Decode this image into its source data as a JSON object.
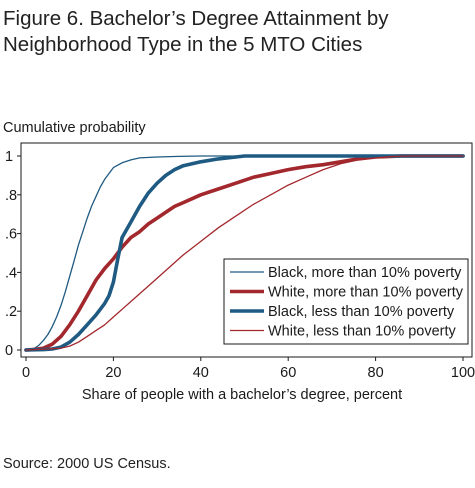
{
  "figure": {
    "title_line1": "Figure 6. Bachelor’s Degree Attainment by",
    "title_line2": "Neighborhood Type in the 5 MTO Cities",
    "source": "Source: 2000 US Census."
  },
  "chart_data": {
    "type": "line",
    "ylabel": "Cumulative probability",
    "xlabel": "Share of people with a bachelor’s degree, percent",
    "xlim": [
      0,
      100
    ],
    "ylim": [
      0,
      1
    ],
    "x_ticks": [
      {
        "value": 0,
        "label": "0"
      },
      {
        "value": 20,
        "label": "20"
      },
      {
        "value": 40,
        "label": "40"
      },
      {
        "value": 60,
        "label": "60"
      },
      {
        "value": 80,
        "label": "80"
      },
      {
        "value": 100,
        "label": "100"
      }
    ],
    "y_ticks": [
      {
        "value": 0,
        "label": "0"
      },
      {
        "value": 0.2,
        "label": ".2"
      },
      {
        "value": 0.4,
        "label": ".4"
      },
      {
        "value": 0.6,
        "label": ".6"
      },
      {
        "value": 0.8,
        "label": ".8"
      },
      {
        "value": 1,
        "label": "1"
      }
    ],
    "grid": false,
    "legend_position": "bottom-right",
    "series": [
      {
        "name": "Black, more than 10% poverty",
        "color": "#1f5a82",
        "width": "thin",
        "points": [
          [
            0,
            0
          ],
          [
            1,
            0.005
          ],
          [
            2,
            0.01
          ],
          [
            3,
            0.025
          ],
          [
            4,
            0.05
          ],
          [
            5,
            0.08
          ],
          [
            6,
            0.12
          ],
          [
            7,
            0.17
          ],
          [
            8,
            0.23
          ],
          [
            9,
            0.3
          ],
          [
            10,
            0.38
          ],
          [
            11,
            0.46
          ],
          [
            12,
            0.54
          ],
          [
            13,
            0.61
          ],
          [
            14,
            0.68
          ],
          [
            15,
            0.74
          ],
          [
            16,
            0.79
          ],
          [
            17,
            0.84
          ],
          [
            18,
            0.88
          ],
          [
            19,
            0.91
          ],
          [
            20,
            0.94
          ],
          [
            22,
            0.965
          ],
          [
            24,
            0.98
          ],
          [
            26,
            0.99
          ],
          [
            30,
            0.995
          ],
          [
            35,
            0.998
          ],
          [
            40,
            1
          ],
          [
            100,
            1
          ]
        ]
      },
      {
        "name": "White, more than 10% poverty",
        "color": "#a3282d",
        "width": "thick",
        "points": [
          [
            0,
            0
          ],
          [
            2,
            0.003
          ],
          [
            4,
            0.01
          ],
          [
            6,
            0.03
          ],
          [
            8,
            0.07
          ],
          [
            10,
            0.13
          ],
          [
            12,
            0.2
          ],
          [
            14,
            0.28
          ],
          [
            16,
            0.36
          ],
          [
            18,
            0.42
          ],
          [
            20,
            0.47
          ],
          [
            22,
            0.53
          ],
          [
            24,
            0.58
          ],
          [
            26,
            0.61
          ],
          [
            28,
            0.65
          ],
          [
            30,
            0.68
          ],
          [
            32,
            0.71
          ],
          [
            34,
            0.74
          ],
          [
            36,
            0.76
          ],
          [
            38,
            0.78
          ],
          [
            40,
            0.8
          ],
          [
            44,
            0.83
          ],
          [
            48,
            0.86
          ],
          [
            52,
            0.89
          ],
          [
            56,
            0.91
          ],
          [
            60,
            0.93
          ],
          [
            64,
            0.945
          ],
          [
            68,
            0.955
          ],
          [
            72,
            0.97
          ],
          [
            76,
            0.985
          ],
          [
            80,
            0.995
          ],
          [
            86,
            1
          ],
          [
            100,
            1
          ]
        ]
      },
      {
        "name": "Black, less than 10% poverty",
        "color": "#1f5a82",
        "width": "thick",
        "points": [
          [
            0,
            0
          ],
          [
            4,
            0.002
          ],
          [
            6,
            0.005
          ],
          [
            8,
            0.015
          ],
          [
            10,
            0.04
          ],
          [
            12,
            0.08
          ],
          [
            14,
            0.13
          ],
          [
            16,
            0.18
          ],
          [
            18,
            0.24
          ],
          [
            19,
            0.28
          ],
          [
            20,
            0.35
          ],
          [
            21,
            0.47
          ],
          [
            22,
            0.58
          ],
          [
            24,
            0.66
          ],
          [
            26,
            0.74
          ],
          [
            28,
            0.81
          ],
          [
            30,
            0.86
          ],
          [
            32,
            0.9
          ],
          [
            34,
            0.93
          ],
          [
            36,
            0.95
          ],
          [
            38,
            0.96
          ],
          [
            40,
            0.97
          ],
          [
            44,
            0.985
          ],
          [
            48,
            0.995
          ],
          [
            50,
            1
          ],
          [
            100,
            1
          ]
        ]
      },
      {
        "name": "White, less than 10% poverty",
        "color": "#a3282d",
        "width": "thin",
        "points": [
          [
            0,
            0
          ],
          [
            5,
            0.005
          ],
          [
            8,
            0.01
          ],
          [
            10,
            0.02
          ],
          [
            12,
            0.04
          ],
          [
            14,
            0.07
          ],
          [
            16,
            0.1
          ],
          [
            18,
            0.13
          ],
          [
            20,
            0.17
          ],
          [
            24,
            0.25
          ],
          [
            28,
            0.33
          ],
          [
            32,
            0.41
          ],
          [
            36,
            0.49
          ],
          [
            40,
            0.56
          ],
          [
            44,
            0.63
          ],
          [
            48,
            0.69
          ],
          [
            52,
            0.75
          ],
          [
            56,
            0.8
          ],
          [
            60,
            0.85
          ],
          [
            64,
            0.89
          ],
          [
            68,
            0.93
          ],
          [
            72,
            0.96
          ],
          [
            76,
            0.98
          ],
          [
            80,
            0.99
          ],
          [
            84,
            0.998
          ],
          [
            88,
            1
          ],
          [
            100,
            1
          ]
        ]
      }
    ]
  }
}
